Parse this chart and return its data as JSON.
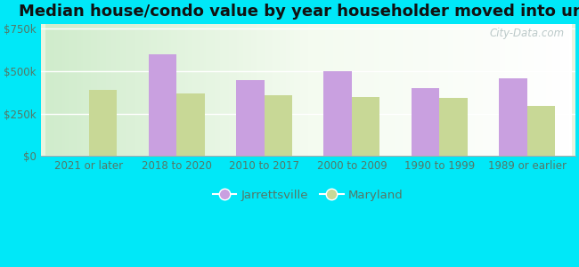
{
  "title": "Median house/condo value by year householder moved into unit",
  "categories": [
    "2021 or later",
    "2018 to 2020",
    "2010 to 2017",
    "2000 to 2009",
    "1990 to 1999",
    "1989 or earlier"
  ],
  "jarrettsville": [
    null,
    600000,
    450000,
    500000,
    400000,
    460000
  ],
  "maryland": [
    390000,
    370000,
    360000,
    350000,
    345000,
    295000
  ],
  "bar_color_jarrettsville": "#c9a0e0",
  "bar_color_maryland": "#c8d896",
  "background_color_outer": "#00e8f8",
  "ylabel_ticks": [
    "$0",
    "$250k",
    "$500k",
    "$750k"
  ],
  "ytick_values": [
    0,
    250000,
    500000,
    750000
  ],
  "ylim": [
    0,
    780000
  ],
  "legend_jarrettsville": "Jarrettsville",
  "legend_maryland": "Maryland",
  "title_fontsize": 13,
  "tick_fontsize": 8.5,
  "legend_fontsize": 9.5,
  "watermark_text": "City-Data.com"
}
